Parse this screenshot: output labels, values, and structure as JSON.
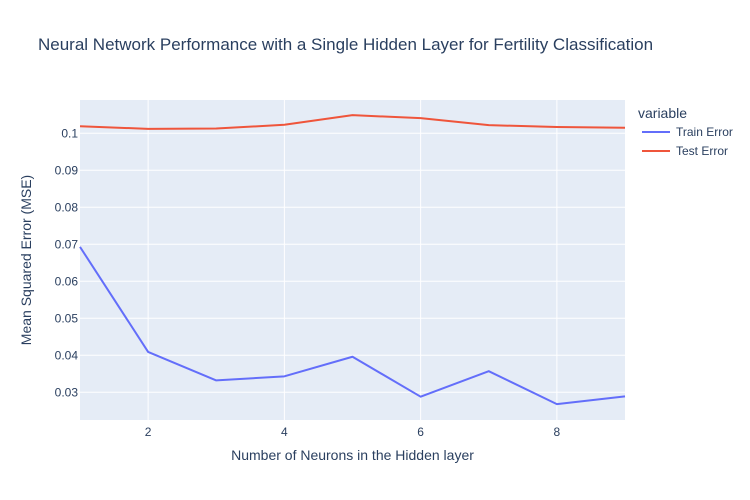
{
  "chart_data": {
    "type": "line",
    "title": "Neural Network Performance with a Single Hidden Layer for Fertility Classification",
    "xlabel": "Number of Neurons in the Hidden layer",
    "ylabel": "Mean Squared Error (MSE)",
    "xlim": [
      1,
      9
    ],
    "ylim": [
      0.0225,
      0.109
    ],
    "xticks": [
      2,
      4,
      6,
      8
    ],
    "yticks": [
      0.03,
      0.04,
      0.05,
      0.06,
      0.07,
      0.08,
      0.09,
      0.1
    ],
    "ytick_labels": [
      "0.03",
      "0.04",
      "0.05",
      "0.06",
      "0.07",
      "0.08",
      "0.09",
      "0.1"
    ],
    "grid": true,
    "legend": {
      "title": "variable",
      "placement": "right"
    },
    "x": [
      1,
      2,
      3,
      4,
      5,
      6,
      7,
      8,
      9
    ],
    "series": [
      {
        "name": "Train Error",
        "color": "#636efa",
        "values": [
          0.0693,
          0.0409,
          0.0332,
          0.0343,
          0.0396,
          0.0288,
          0.0357,
          0.0268,
          0.0289
        ]
      },
      {
        "name": "Test Error",
        "color": "#ef553b",
        "values": [
          0.1019,
          0.1012,
          0.1013,
          0.1023,
          0.1049,
          0.1041,
          0.1022,
          0.1017,
          0.1015
        ]
      }
    ]
  }
}
